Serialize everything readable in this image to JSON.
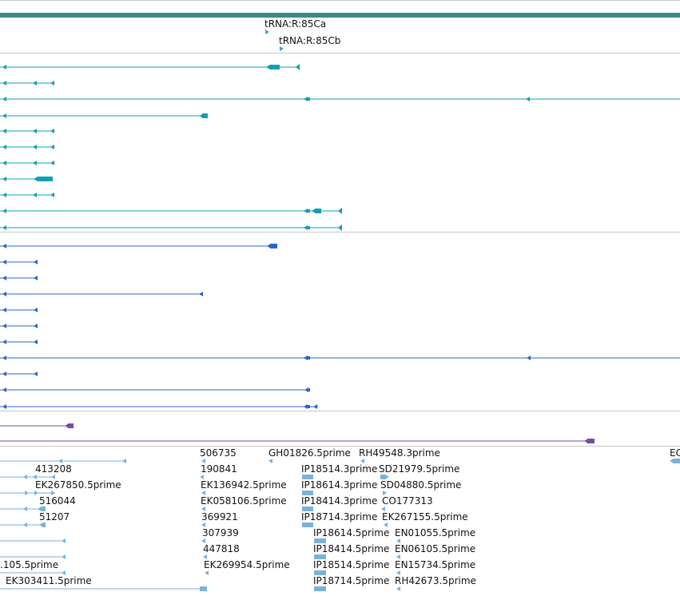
{
  "colors": {
    "top_band": "#3a8c86",
    "trna": "#3fa3c7",
    "cyan_track": "#10a0b4",
    "blue_track": "#2d64c8",
    "purple_track": "#7a4aa8",
    "est_track": "#7ab2db",
    "divider": "#c8c8c8"
  },
  "trna_labels": [
    "tRNA:R:85Ca",
    "tRNA:R:85Cb"
  ],
  "est_labels": [
    "506735",
    "GH01826.5prime",
    "RH49548.3prime",
    "EC",
    "413208",
    "190841",
    "IP18514.3prime",
    "SD21979.5prime",
    "EK267850.5prime",
    "EK136942.5prime",
    "IP18614.3prime",
    "SD04880.5prime",
    "516044",
    "EK058106.5prime",
    "IP18414.3prime",
    "CO177313",
    "51207",
    "369921",
    "IP18714.3prime",
    "EK267155.5prime",
    "307939",
    "IP18614.5prime",
    "EN01055.5prime",
    "447818",
    "IP18414.5prime",
    "EN06105.5prime",
    ".105.5prime",
    "EK269954.5prime",
    "IP18514.5prime",
    "EN15734.5prime",
    "EK303411.5prime",
    "IP18714.5prime",
    "RH42673.5prime"
  ]
}
